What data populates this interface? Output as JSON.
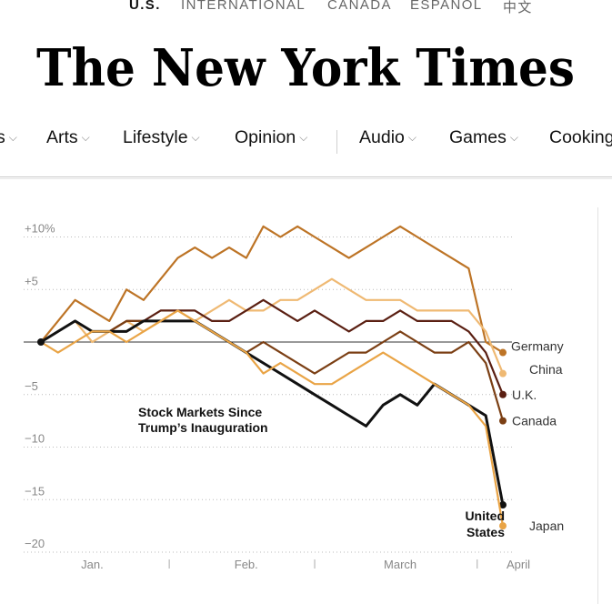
{
  "editions": [
    "U.S.",
    "INTERNATIONAL",
    "CANADA",
    "ESPAÑOL",
    "中文"
  ],
  "masthead": {
    "title": "The New York Times"
  },
  "nav": {
    "items": [
      "s",
      "Arts",
      "Lifestyle",
      "Opinion",
      "Audio",
      "Games",
      "Cooking"
    ]
  },
  "colors": {
    "united_states": "#111111",
    "japan": "#e9a446",
    "canada": "#7b3f14",
    "uk": "#5a1f12",
    "china": "#efb973",
    "germany": "#bd7426"
  },
  "chart_data": {
    "type": "line",
    "title": "Stock Markets Since Trump’s Inauguration",
    "y_unit": "percent change",
    "ylim": [
      -20,
      12
    ],
    "y_ticks": [
      10,
      5,
      0,
      -5,
      -10,
      -15,
      -20
    ],
    "y_tick_labels": [
      "+10%",
      "+5",
      "",
      "−5",
      "−10",
      "−15",
      "−20"
    ],
    "x_tick_labels": [
      "Jan.",
      "Feb.",
      "March",
      "April"
    ],
    "x": [
      "2025-01-20",
      "2025-01-23",
      "2025-01-27",
      "2025-01-29",
      "2025-01-31",
      "2025-02-03",
      "2025-02-05",
      "2025-02-07",
      "2025-02-11",
      "2025-02-13",
      "2025-02-17",
      "2025-02-19",
      "2025-02-21",
      "2025-02-25",
      "2025-02-27",
      "2025-03-03",
      "2025-03-05",
      "2025-03-07",
      "2025-03-11",
      "2025-03-13",
      "2025-03-17",
      "2025-03-19",
      "2025-03-21",
      "2025-03-25",
      "2025-03-27",
      "2025-03-31",
      "2025-04-02",
      "2025-04-04"
    ],
    "grid": true,
    "series": [
      {
        "name": "Germany",
        "label_color_key": "germany",
        "values": [
          0,
          2,
          4,
          3,
          2,
          5,
          4,
          6,
          8,
          9,
          8,
          9,
          8,
          11,
          10,
          11,
          10,
          9,
          8,
          9,
          10,
          11,
          10,
          9,
          8,
          7,
          0,
          -1
        ]
      },
      {
        "name": "China",
        "label_color_key": "china",
        "values": [
          0,
          1,
          2,
          0,
          1,
          2,
          1,
          2,
          3,
          2,
          3,
          4,
          3,
          3,
          4,
          4,
          5,
          6,
          5,
          4,
          4,
          4,
          3,
          3,
          3,
          3,
          1,
          -3
        ]
      },
      {
        "name": "U.K.",
        "label_color_key": "uk",
        "values": [
          0,
          1,
          2,
          1,
          1,
          2,
          2,
          3,
          3,
          3,
          2,
          2,
          3,
          4,
          3,
          2,
          3,
          2,
          1,
          2,
          2,
          3,
          2,
          2,
          2,
          1,
          -1,
          -5
        ]
      },
      {
        "name": "Canada",
        "label_color_key": "canada",
        "values": [
          0,
          1,
          2,
          1,
          1,
          2,
          2,
          2,
          2,
          2,
          1,
          0,
          -1,
          0,
          -1,
          -2,
          -3,
          -2,
          -1,
          -1,
          0,
          1,
          0,
          -1,
          -1,
          0,
          -2,
          -7.5
        ]
      },
      {
        "name": "United States",
        "label_color_key": "united_states",
        "values": [
          0,
          1,
          2,
          1,
          1,
          1,
          2,
          2,
          2,
          2,
          1,
          0,
          -1,
          -2,
          -3,
          -4,
          -5,
          -6,
          -7,
          -8,
          -6,
          -5,
          -6,
          -4,
          -5,
          -6,
          -7,
          -15.5
        ]
      },
      {
        "name": "Japan",
        "label_color_key": "japan",
        "values": [
          0,
          -1,
          0,
          1,
          1,
          0,
          1,
          2,
          3,
          2,
          1,
          0,
          -1,
          -3,
          -2,
          -3,
          -4,
          -4,
          -3,
          -2,
          -1,
          -2,
          -3,
          -4,
          -5,
          -6,
          -8,
          -17.5
        ]
      }
    ],
    "end_labels": [
      {
        "text": "Germany",
        "color_key": "germany"
      },
      {
        "text": "China",
        "color_key": "china"
      },
      {
        "text": "U.K.",
        "color_key": "uk"
      },
      {
        "text": "Canada",
        "color_key": "canada"
      },
      {
        "text": "Japan",
        "color_key": "japan"
      }
    ],
    "us_label_lines": [
      "United",
      "States"
    ]
  }
}
